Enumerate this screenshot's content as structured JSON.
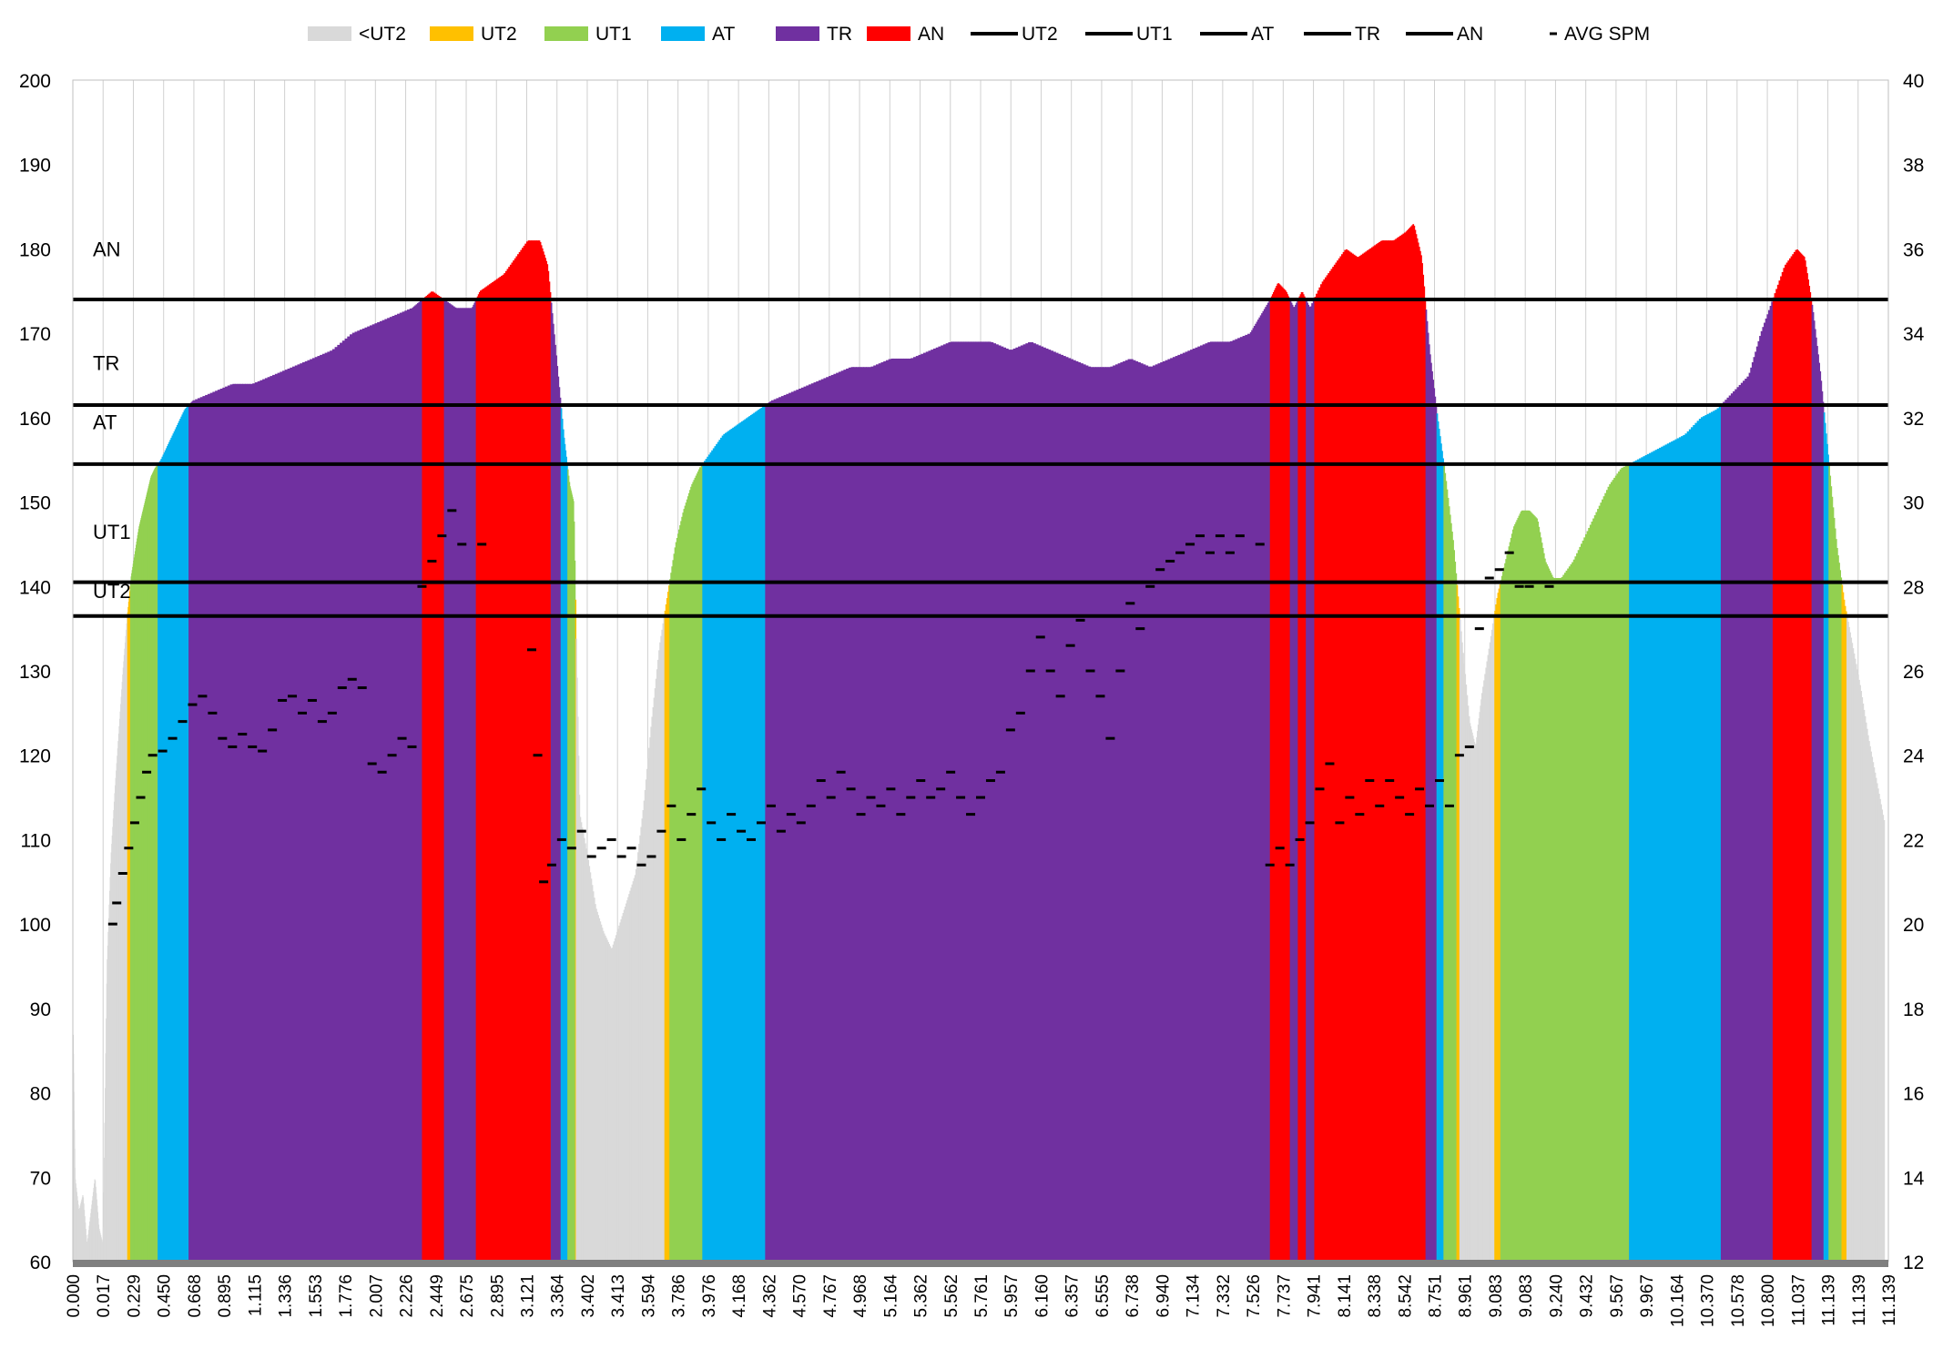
{
  "chart_data": {
    "type": "area",
    "title": "",
    "xlabel": "",
    "ylabel": "",
    "y2label": "",
    "ylim": [
      60,
      200
    ],
    "y2lim": [
      12,
      40
    ],
    "grid": "vertical",
    "legend_position": "top",
    "legend": [
      {
        "label": "<UT2",
        "kind": "area",
        "color": "#d9d9d9"
      },
      {
        "label": "UT2",
        "kind": "area",
        "color": "#ffc000"
      },
      {
        "label": "UT1",
        "kind": "area",
        "color": "#92d050"
      },
      {
        "label": "AT",
        "kind": "area",
        "color": "#00b0f0"
      },
      {
        "label": "TR",
        "kind": "area",
        "color": "#7030a0"
      },
      {
        "label": "AN",
        "kind": "area",
        "color": "#ff0000"
      },
      {
        "label": "UT2",
        "kind": "line",
        "color": "#000000"
      },
      {
        "label": "UT1",
        "kind": "line",
        "color": "#000000"
      },
      {
        "label": "AT",
        "kind": "line",
        "color": "#000000"
      },
      {
        "label": "TR",
        "kind": "line",
        "color": "#000000"
      },
      {
        "label": "AN",
        "kind": "line",
        "color": "#000000"
      },
      {
        "label": "AVG SPM",
        "kind": "marker",
        "color": "#000000"
      }
    ],
    "y_ticks": [
      60,
      70,
      80,
      90,
      100,
      110,
      120,
      130,
      140,
      150,
      160,
      170,
      180,
      190,
      200
    ],
    "y2_ticks": [
      12,
      14,
      16,
      18,
      20,
      22,
      24,
      26,
      28,
      30,
      32,
      34,
      36,
      38,
      40
    ],
    "x_ticks": [
      "0.000",
      "0.017",
      "0.229",
      "0.450",
      "0.668",
      "0.895",
      "1.115",
      "1.336",
      "1.553",
      "1.776",
      "2.007",
      "2.226",
      "2.449",
      "2.675",
      "2.895",
      "3.121",
      "3.364",
      "3.402",
      "3.413",
      "3.594",
      "3.786",
      "3.976",
      "4.168",
      "4.362",
      "4.570",
      "4.767",
      "4.968",
      "5.164",
      "5.362",
      "5.562",
      "5.761",
      "5.957",
      "6.160",
      "6.357",
      "6.555",
      "6.738",
      "6.940",
      "7.134",
      "7.332",
      "7.526",
      "7.737",
      "7.941",
      "8.141",
      "8.338",
      "8.542",
      "8.751",
      "8.961",
      "9.083",
      "9.083",
      "9.240",
      "9.432",
      "9.567",
      "9.967",
      "10.164",
      "10.370",
      "10.578",
      "10.800",
      "11.037",
      "11.139",
      "11.139",
      "11.139"
    ],
    "zone_lines": [
      {
        "label": "AN",
        "value": 174
      },
      {
        "label": "TR",
        "value": 161.5
      },
      {
        "label": "AT",
        "value": 154.5
      },
      {
        "label": "UT1",
        "value": 140.5
      },
      {
        "label": "UT2",
        "value": 136.5
      }
    ],
    "zone_text_labels": [
      "AN",
      "TR",
      "AT",
      "UT1",
      "UT2"
    ],
    "heart_rate": [
      [
        0.0,
        88
      ],
      [
        0.01,
        70
      ],
      [
        0.03,
        66
      ],
      [
        0.05,
        68
      ],
      [
        0.07,
        62
      ],
      [
        0.09,
        66
      ],
      [
        0.11,
        70
      ],
      [
        0.13,
        64
      ],
      [
        0.15,
        62
      ],
      [
        0.17,
        95
      ],
      [
        0.19,
        108
      ],
      [
        0.21,
        116
      ],
      [
        0.23,
        123
      ],
      [
        0.25,
        130
      ],
      [
        0.27,
        136
      ],
      [
        0.29,
        141
      ],
      [
        0.31,
        144
      ],
      [
        0.33,
        147
      ],
      [
        0.35,
        149
      ],
      [
        0.37,
        151
      ],
      [
        0.39,
        153
      ],
      [
        0.41,
        154
      ],
      [
        0.44,
        155
      ],
      [
        0.48,
        157
      ],
      [
        0.52,
        159
      ],
      [
        0.56,
        161
      ],
      [
        0.6,
        162
      ],
      [
        0.7,
        163
      ],
      [
        0.8,
        164
      ],
      [
        0.9,
        164
      ],
      [
        1.0,
        165
      ],
      [
        1.1,
        166
      ],
      [
        1.2,
        167
      ],
      [
        1.3,
        168
      ],
      [
        1.4,
        170
      ],
      [
        1.5,
        171
      ],
      [
        1.6,
        172
      ],
      [
        1.7,
        173
      ],
      [
        1.75,
        174
      ],
      [
        1.8,
        175
      ],
      [
        1.86,
        174
      ],
      [
        1.92,
        173
      ],
      [
        2.0,
        173
      ],
      [
        2.04,
        175
      ],
      [
        2.1,
        176
      ],
      [
        2.16,
        177
      ],
      [
        2.22,
        179
      ],
      [
        2.28,
        181
      ],
      [
        2.34,
        181
      ],
      [
        2.38,
        178
      ],
      [
        2.42,
        168
      ],
      [
        2.46,
        158
      ],
      [
        2.49,
        152
      ],
      [
        2.51,
        150
      ],
      [
        2.54,
        113
      ],
      [
        2.58,
        108
      ],
      [
        2.62,
        102
      ],
      [
        2.66,
        99
      ],
      [
        2.7,
        97
      ],
      [
        2.74,
        100
      ],
      [
        2.78,
        103
      ],
      [
        2.82,
        106
      ],
      [
        2.86,
        114
      ],
      [
        2.9,
        124
      ],
      [
        2.94,
        133
      ],
      [
        2.98,
        139
      ],
      [
        3.02,
        145
      ],
      [
        3.06,
        149
      ],
      [
        3.1,
        152
      ],
      [
        3.14,
        154
      ],
      [
        3.2,
        156
      ],
      [
        3.26,
        158
      ],
      [
        3.32,
        159
      ],
      [
        3.38,
        160
      ],
      [
        3.44,
        161
      ],
      [
        3.5,
        162
      ],
      [
        3.6,
        163
      ],
      [
        3.7,
        164
      ],
      [
        3.8,
        165
      ],
      [
        3.9,
        166
      ],
      [
        4.0,
        166
      ],
      [
        4.1,
        167
      ],
      [
        4.2,
        167
      ],
      [
        4.3,
        168
      ],
      [
        4.4,
        169
      ],
      [
        4.5,
        169
      ],
      [
        4.6,
        169
      ],
      [
        4.7,
        168
      ],
      [
        4.8,
        169
      ],
      [
        4.9,
        168
      ],
      [
        5.0,
        167
      ],
      [
        5.1,
        166
      ],
      [
        5.2,
        166
      ],
      [
        5.3,
        167
      ],
      [
        5.4,
        166
      ],
      [
        5.5,
        167
      ],
      [
        5.6,
        168
      ],
      [
        5.7,
        169
      ],
      [
        5.8,
        169
      ],
      [
        5.9,
        170
      ],
      [
        5.95,
        172
      ],
      [
        6.0,
        174
      ],
      [
        6.04,
        176
      ],
      [
        6.08,
        175
      ],
      [
        6.12,
        173
      ],
      [
        6.16,
        175
      ],
      [
        6.2,
        173
      ],
      [
        6.26,
        176
      ],
      [
        6.32,
        178
      ],
      [
        6.38,
        180
      ],
      [
        6.44,
        179
      ],
      [
        6.5,
        180
      ],
      [
        6.56,
        181
      ],
      [
        6.62,
        181
      ],
      [
        6.68,
        182
      ],
      [
        6.72,
        183
      ],
      [
        6.76,
        179
      ],
      [
        6.8,
        168
      ],
      [
        6.84,
        160
      ],
      [
        6.88,
        153
      ],
      [
        6.92,
        145
      ],
      [
        6.96,
        134
      ],
      [
        7.0,
        124
      ],
      [
        7.03,
        121
      ],
      [
        7.06,
        127
      ],
      [
        7.1,
        133
      ],
      [
        7.14,
        139
      ],
      [
        7.18,
        143
      ],
      [
        7.22,
        147
      ],
      [
        7.26,
        149
      ],
      [
        7.3,
        149
      ],
      [
        7.34,
        148
      ],
      [
        7.38,
        143
      ],
      [
        7.42,
        141
      ],
      [
        7.46,
        141
      ],
      [
        7.52,
        143
      ],
      [
        7.58,
        146
      ],
      [
        7.64,
        149
      ],
      [
        7.7,
        152
      ],
      [
        7.76,
        154
      ],
      [
        7.84,
        155
      ],
      [
        7.92,
        156
      ],
      [
        8.0,
        157
      ],
      [
        8.08,
        158
      ],
      [
        8.16,
        160
      ],
      [
        8.24,
        161
      ],
      [
        8.32,
        163
      ],
      [
        8.4,
        165
      ],
      [
        8.46,
        170
      ],
      [
        8.52,
        174
      ],
      [
        8.58,
        178
      ],
      [
        8.64,
        180
      ],
      [
        8.68,
        179
      ],
      [
        8.72,
        173
      ],
      [
        8.76,
        165
      ],
      [
        8.8,
        155
      ],
      [
        8.84,
        145
      ],
      [
        8.88,
        138
      ],
      [
        8.92,
        133
      ],
      [
        8.96,
        128
      ],
      [
        9.0,
        122
      ],
      [
        9.04,
        117
      ],
      [
        9.08,
        112
      ]
    ],
    "hr_zone_bounds": {
      "ut2": 136.5,
      "ut1": 140.5,
      "at": 154.5,
      "tr": 161.5,
      "an": 174
    },
    "avg_spm": [
      [
        0.2,
        20.0
      ],
      [
        0.22,
        20.5
      ],
      [
        0.25,
        21.2
      ],
      [
        0.28,
        21.8
      ],
      [
        0.31,
        22.4
      ],
      [
        0.34,
        23.0
      ],
      [
        0.37,
        23.6
      ],
      [
        0.4,
        24.0
      ],
      [
        0.45,
        24.1
      ],
      [
        0.5,
        24.4
      ],
      [
        0.55,
        24.8
      ],
      [
        0.6,
        25.2
      ],
      [
        0.65,
        25.4
      ],
      [
        0.7,
        25.0
      ],
      [
        0.75,
        24.4
      ],
      [
        0.8,
        24.2
      ],
      [
        0.85,
        24.5
      ],
      [
        0.9,
        24.2
      ],
      [
        0.95,
        24.1
      ],
      [
        1.0,
        24.6
      ],
      [
        1.05,
        25.3
      ],
      [
        1.1,
        25.4
      ],
      [
        1.15,
        25.0
      ],
      [
        1.2,
        25.3
      ],
      [
        1.25,
        24.8
      ],
      [
        1.3,
        25.0
      ],
      [
        1.35,
        25.6
      ],
      [
        1.4,
        25.8
      ],
      [
        1.45,
        25.6
      ],
      [
        1.5,
        23.8
      ],
      [
        1.55,
        23.6
      ],
      [
        1.6,
        24.0
      ],
      [
        1.65,
        24.4
      ],
      [
        1.7,
        24.2
      ],
      [
        1.75,
        28.0
      ],
      [
        1.8,
        28.6
      ],
      [
        1.85,
        29.2
      ],
      [
        1.9,
        29.8
      ],
      [
        1.95,
        29.0
      ],
      [
        2.05,
        29.0
      ],
      [
        2.3,
        26.5
      ],
      [
        2.33,
        24.0
      ],
      [
        2.36,
        21.0
      ],
      [
        2.4,
        21.4
      ],
      [
        2.45,
        22.0
      ],
      [
        2.5,
        21.8
      ],
      [
        2.55,
        22.2
      ],
      [
        2.6,
        21.6
      ],
      [
        2.65,
        21.8
      ],
      [
        2.7,
        22.0
      ],
      [
        2.75,
        21.6
      ],
      [
        2.8,
        21.8
      ],
      [
        2.85,
        21.4
      ],
      [
        2.9,
        21.6
      ],
      [
        2.95,
        22.2
      ],
      [
        3.0,
        22.8
      ],
      [
        3.05,
        22.0
      ],
      [
        3.1,
        22.6
      ],
      [
        3.15,
        23.2
      ],
      [
        3.2,
        22.4
      ],
      [
        3.25,
        22.0
      ],
      [
        3.3,
        22.6
      ],
      [
        3.35,
        22.2
      ],
      [
        3.4,
        22.0
      ],
      [
        3.45,
        22.4
      ],
      [
        3.5,
        22.8
      ],
      [
        3.55,
        22.2
      ],
      [
        3.6,
        22.6
      ],
      [
        3.65,
        22.4
      ],
      [
        3.7,
        22.8
      ],
      [
        3.75,
        23.4
      ],
      [
        3.8,
        23.0
      ],
      [
        3.85,
        23.6
      ],
      [
        3.9,
        23.2
      ],
      [
        3.95,
        22.6
      ],
      [
        4.0,
        23.0
      ],
      [
        4.05,
        22.8
      ],
      [
        4.1,
        23.2
      ],
      [
        4.15,
        22.6
      ],
      [
        4.2,
        23.0
      ],
      [
        4.25,
        23.4
      ],
      [
        4.3,
        23.0
      ],
      [
        4.35,
        23.2
      ],
      [
        4.4,
        23.6
      ],
      [
        4.45,
        23.0
      ],
      [
        4.5,
        22.6
      ],
      [
        4.55,
        23.0
      ],
      [
        4.6,
        23.4
      ],
      [
        4.65,
        23.6
      ],
      [
        4.7,
        24.6
      ],
      [
        4.75,
        25.0
      ],
      [
        4.8,
        26.0
      ],
      [
        4.85,
        26.8
      ],
      [
        4.9,
        26.0
      ],
      [
        4.95,
        25.4
      ],
      [
        5.0,
        26.6
      ],
      [
        5.05,
        27.2
      ],
      [
        5.1,
        26.0
      ],
      [
        5.15,
        25.4
      ],
      [
        5.2,
        24.4
      ],
      [
        5.25,
        26.0
      ],
      [
        5.3,
        27.6
      ],
      [
        5.35,
        27.0
      ],
      [
        5.4,
        28.0
      ],
      [
        5.45,
        28.4
      ],
      [
        5.5,
        28.6
      ],
      [
        5.55,
        28.8
      ],
      [
        5.6,
        29.0
      ],
      [
        5.65,
        29.2
      ],
      [
        5.7,
        28.8
      ],
      [
        5.75,
        29.2
      ],
      [
        5.8,
        28.8
      ],
      [
        5.85,
        29.2
      ],
      [
        5.95,
        29.0
      ],
      [
        6.0,
        21.4
      ],
      [
        6.05,
        21.8
      ],
      [
        6.1,
        21.4
      ],
      [
        6.15,
        22.0
      ],
      [
        6.2,
        22.4
      ],
      [
        6.25,
        23.2
      ],
      [
        6.3,
        23.8
      ],
      [
        6.35,
        22.4
      ],
      [
        6.4,
        23.0
      ],
      [
        6.45,
        22.6
      ],
      [
        6.5,
        23.4
      ],
      [
        6.55,
        22.8
      ],
      [
        6.6,
        23.4
      ],
      [
        6.65,
        23.0
      ],
      [
        6.7,
        22.6
      ],
      [
        6.75,
        23.2
      ],
      [
        6.8,
        22.8
      ],
      [
        6.85,
        23.4
      ],
      [
        6.9,
        22.8
      ],
      [
        6.95,
        24.0
      ],
      [
        7.0,
        24.2
      ],
      [
        7.05,
        27.0
      ],
      [
        7.1,
        28.2
      ],
      [
        7.15,
        28.4
      ],
      [
        7.2,
        28.8
      ],
      [
        7.25,
        28.0
      ],
      [
        7.3,
        28.0
      ],
      [
        7.4,
        28.0
      ]
    ],
    "spm_x_map_note": ""
  }
}
